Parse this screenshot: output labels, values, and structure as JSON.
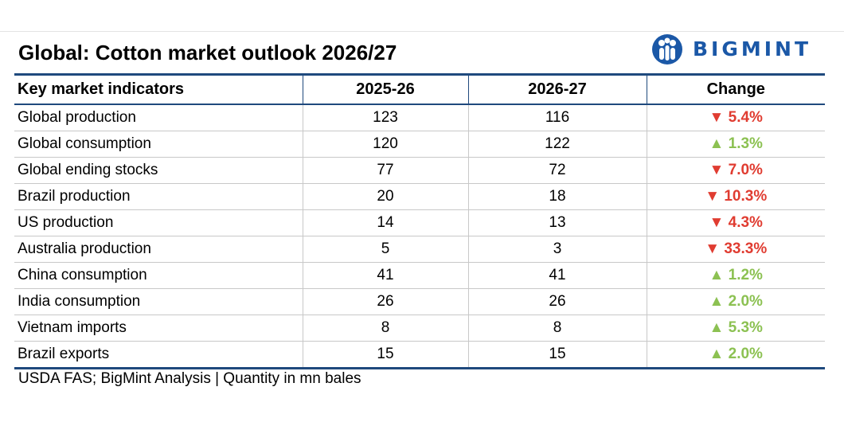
{
  "title": "Global: Cotton market outlook 2026/27",
  "logo": {
    "text": "BIGMINT",
    "icon": "bigmint-people-logo-icon",
    "color": "#1b58a7"
  },
  "table": {
    "headers": [
      "Key market indicators",
      "2025-26",
      "2026-27",
      "Change"
    ],
    "rows": [
      {
        "indicator": "Global production",
        "y2025_26": "123",
        "y2026_27": "116",
        "change": "▼ 5.4%",
        "direction": "down"
      },
      {
        "indicator": "Global consumption",
        "y2025_26": "120",
        "y2026_27": "122",
        "change": "▲ 1.3%",
        "direction": "up"
      },
      {
        "indicator": "Global ending stocks",
        "y2025_26": "77",
        "y2026_27": "72",
        "change": "▼ 7.0%",
        "direction": "down"
      },
      {
        "indicator": "Brazil production",
        "y2025_26": "20",
        "y2026_27": "18",
        "change": "▼ 10.3%",
        "direction": "down"
      },
      {
        "indicator": "US production",
        "y2025_26": "14",
        "y2026_27": "13",
        "change": "▼ 4.3%",
        "direction": "down"
      },
      {
        "indicator": "Australia production",
        "y2025_26": "5",
        "y2026_27": "3",
        "change": "▼ 33.3%",
        "direction": "down"
      },
      {
        "indicator": "China consumption",
        "y2025_26": "41",
        "y2026_27": "41",
        "change": "▲ 1.2%",
        "direction": "up"
      },
      {
        "indicator": "India consumption",
        "y2025_26": "26",
        "y2026_27": "26",
        "change": "▲ 2.0%",
        "direction": "up"
      },
      {
        "indicator": "Vietnam imports",
        "y2025_26": "8",
        "y2026_27": "8",
        "change": "▲ 5.3%",
        "direction": "up"
      },
      {
        "indicator": "Brazil exports",
        "y2025_26": "15",
        "y2026_27": "15",
        "change": "▲ 2.0%",
        "direction": "up"
      }
    ]
  },
  "colors": {
    "header_rule": "#1f497d",
    "decrease": "#e03c31",
    "increase": "#8cc152"
  },
  "source": "USDA FAS; BigMint Analysis | Quantity in mn bales"
}
